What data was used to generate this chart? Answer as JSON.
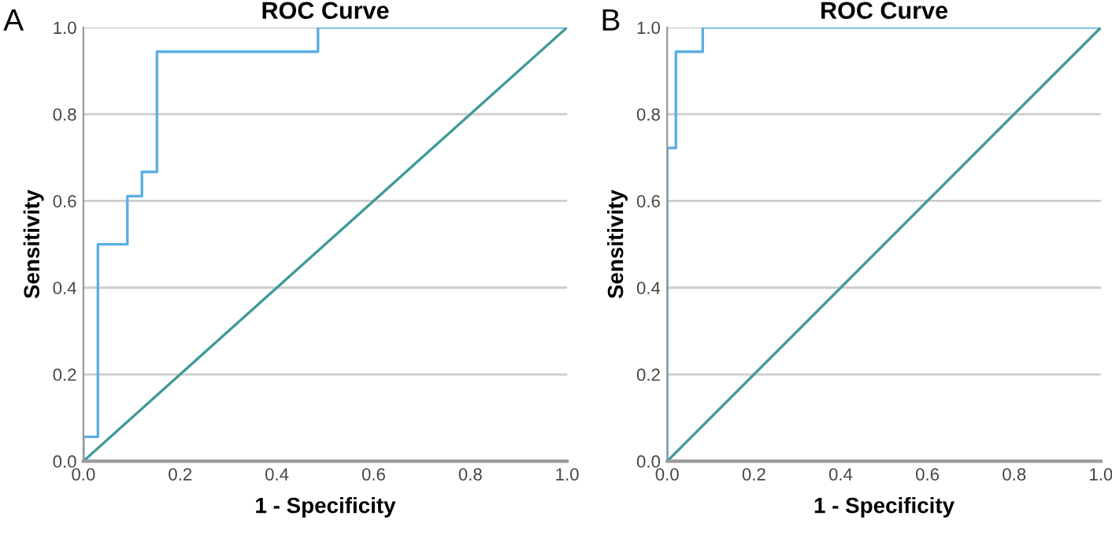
{
  "chart_data": [
    {
      "type": "line",
      "title": "ROC Curve",
      "xlabel": "1 - Specificity",
      "ylabel": "Sensitivity",
      "annotations": [
        "A"
      ],
      "series": [
        {
          "color": "#5aaee3",
          "x": [
            0,
            0,
            0.03,
            0.03,
            0.091,
            0.091,
            0.121,
            0.121,
            0.152,
            0.152,
            0.485,
            0.485,
            1
          ],
          "values": [
            0,
            0.056,
            0.056,
            0.5,
            0.5,
            0.611,
            0.611,
            0.667,
            0.667,
            0.944,
            0.944,
            1,
            1
          ]
        },
        {
          "color": "#3f9a98",
          "x": [
            0,
            1
          ],
          "values": [
            0,
            1
          ]
        }
      ],
      "xlim": [
        0,
        1
      ],
      "ylim": [
        0,
        1
      ],
      "xticks": [
        {
          "value": 0,
          "label": "0.0"
        },
        {
          "value": 0.2,
          "label": "0.2"
        },
        {
          "value": 0.4,
          "label": "0.4"
        },
        {
          "value": 0.6,
          "label": "0.6"
        },
        {
          "value": 0.8,
          "label": "0.8"
        },
        {
          "value": 1,
          "label": "1.0"
        }
      ],
      "yticks": [
        {
          "value": 0,
          "label": "0.0"
        },
        {
          "value": 0.2,
          "label": "0.2"
        },
        {
          "value": 0.4,
          "label": "0.4"
        },
        {
          "value": 0.6,
          "label": "0.6"
        },
        {
          "value": 0.8,
          "label": "0.8"
        },
        {
          "value": 1,
          "label": "1.0"
        }
      ],
      "grid": "y",
      "marker": "none",
      "line_style": "solid",
      "legend": false
    },
    {
      "type": "line",
      "title": "ROC Curve",
      "xlabel": "1 - Specificity",
      "ylabel": "Sensitivity",
      "annotations": [
        "B"
      ],
      "series": [
        {
          "color": "#5aaee3",
          "x": [
            0,
            0,
            0.02,
            0.02,
            0.082,
            0.082,
            1
          ],
          "values": [
            0,
            0.722,
            0.722,
            0.944,
            0.944,
            1,
            1
          ]
        },
        {
          "color": "#3f9a98",
          "x": [
            0,
            1
          ],
          "values": [
            0,
            1
          ]
        }
      ],
      "xlim": [
        0,
        1
      ],
      "ylim": [
        0,
        1
      ],
      "xticks": [
        {
          "value": 0,
          "label": "0.0"
        },
        {
          "value": 0.2,
          "label": "0.2"
        },
        {
          "value": 0.4,
          "label": "0.4"
        },
        {
          "value": 0.6,
          "label": "0.6"
        },
        {
          "value": 0.8,
          "label": "0.8"
        },
        {
          "value": 1,
          "label": "1.0"
        }
      ],
      "yticks": [
        {
          "value": 0,
          "label": "0.0"
        },
        {
          "value": 0.2,
          "label": "0.2"
        },
        {
          "value": 0.4,
          "label": "0.4"
        },
        {
          "value": 0.6,
          "label": "0.6"
        },
        {
          "value": 0.8,
          "label": "0.8"
        },
        {
          "value": 1,
          "label": "1.0"
        }
      ],
      "grid": "y",
      "marker": "none",
      "line_style": "solid",
      "legend": false
    }
  ]
}
